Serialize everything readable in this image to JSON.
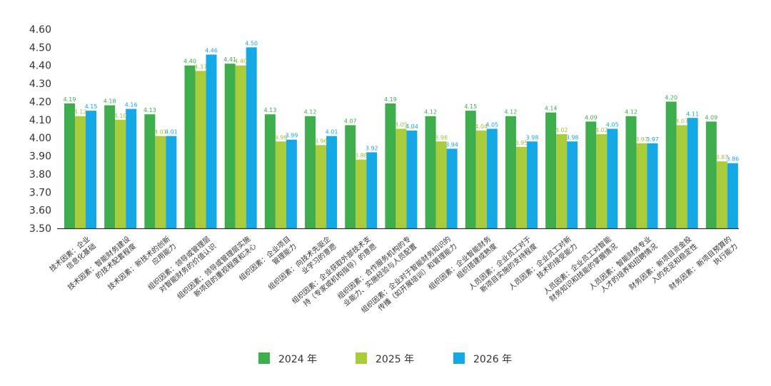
{
  "chart_data": {
    "type": "bar",
    "title": "",
    "xlabel": "",
    "ylabel": "",
    "ylim": [
      3.5,
      4.6
    ],
    "yticks": [
      "3.50",
      "3.60",
      "3.70",
      "3.80",
      "3.90",
      "4.00",
      "4.10",
      "4.20",
      "4.30",
      "4.40",
      "4.50",
      "4.60"
    ],
    "grid": false,
    "legend_position": "bottom",
    "categories": [
      [
        "技术因素：企业",
        "信息化基础"
      ],
      [
        "技术因素：智能财务建设",
        "的技术配套程度"
      ],
      [
        "技术因素：新技术的创新",
        "应用能力"
      ],
      [
        "组织因素：领导或管理层",
        "对智能财务的价值认识"
      ],
      [
        "组织因素：领导或管理层实施",
        "新项目的重视程度和决心"
      ],
      [
        "组织因素：企业项目",
        "管理能力"
      ],
      [
        "组织因素：向技术先驱企",
        "业学习的意愿"
      ],
      [
        "组织因素：企业获取外部技术支",
        "持（专家或机构指导）的意愿"
      ],
      [
        "组织因素：合作服务机构的专",
        "业能力、实施经验与人员配置"
      ],
      [
        "组织因素：企业对于智能财务知识的",
        "传播（如开展培训）和管理能力"
      ],
      [
        "组织因素：企业智能财务",
        "组织搭建成熟度"
      ],
      [
        "人员因素：企业员工对于",
        "新项目实施的支持程度"
      ],
      [
        "人员因素：企业员工对新",
        "技术的接受能力"
      ],
      [
        "人员因素：企业员工对智能",
        "财务知识和技能的掌握情况"
      ],
      [
        "人员因素：智能财务专业",
        "人才的培养和招聘情况"
      ],
      [
        "财务因素：新项目资金投",
        "入的充足和稳定性"
      ],
      [
        "财务因素：新项目预算的",
        "执行能力"
      ]
    ],
    "series": [
      {
        "name": "2024 年",
        "color": "#3DAE4B",
        "label_color": "#3DAE4B",
        "values": [
          4.19,
          4.18,
          4.13,
          4.4,
          4.41,
          4.13,
          4.12,
          4.07,
          4.19,
          4.12,
          4.15,
          4.12,
          4.14,
          4.09,
          4.12,
          4.2,
          4.09
        ],
        "labels": [
          "4.19",
          "4.18",
          "4.13",
          "4.40",
          "4.41",
          "4.13",
          "4.12",
          "4.07",
          "4.19",
          "4.12",
          "4.15",
          "4.12",
          "4.14",
          "4.09",
          "4.12",
          "4.20",
          "4.09"
        ]
      },
      {
        "name": "2025 年",
        "color": "#A8CC3A",
        "label_color": "#9DC03A",
        "values": [
          4.12,
          4.1,
          4.01,
          4.37,
          4.4,
          3.98,
          3.96,
          3.88,
          4.05,
          3.98,
          4.04,
          3.95,
          4.02,
          4.02,
          3.97,
          4.07,
          3.87
        ],
        "labels": [
          "4.12",
          "4.10",
          "4.01",
          "4.37",
          "4.40",
          "3.98",
          "3.96",
          "3.88",
          "4.05",
          "3.98",
          "4.04",
          "3.95",
          "4.02",
          "4.02",
          "3.97",
          "4.07",
          "3.87"
        ]
      },
      {
        "name": "2026 年",
        "color": "#14A8E6",
        "label_color": "#14A8E6",
        "values": [
          4.15,
          4.16,
          4.01,
          4.46,
          4.5,
          3.99,
          4.01,
          3.92,
          4.04,
          3.94,
          4.05,
          3.98,
          3.98,
          4.05,
          3.97,
          4.11,
          3.86
        ],
        "labels": [
          "4.15",
          "4.16",
          "4.01",
          "4.46",
          "4.50",
          "3.99",
          "4.01",
          "3.92",
          "4.04",
          "3.94",
          "4.05",
          "3.98",
          "3.98",
          "4.05",
          "3.97",
          "4.11",
          "3.86"
        ]
      }
    ]
  }
}
